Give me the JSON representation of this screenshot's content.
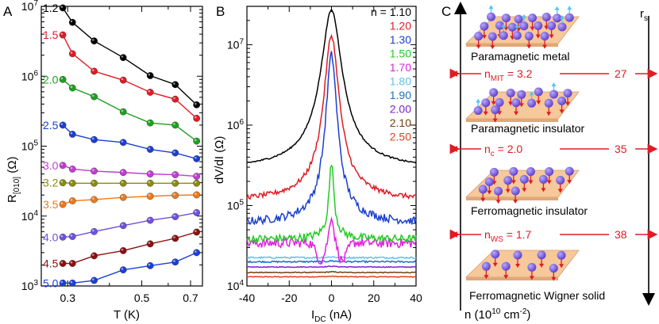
{
  "panels": {
    "a": {
      "letter": "A"
    },
    "b": {
      "letter": "B"
    },
    "c": {
      "letter": "C"
    }
  },
  "chart_data": [
    {
      "type": "line",
      "panel": "A",
      "title": "",
      "xlabel": "T (K)",
      "ylabel": "R[010] (Ω)",
      "ylabel_main": "R",
      "ylabel_sub": "[010]",
      "ylabel_unit": " (Ω)",
      "xscale": "log",
      "yscale": "log",
      "xlim": [
        0.25,
        0.76
      ],
      "ylim": [
        1000,
        10000000
      ],
      "xticks": [
        0.3,
        0.5,
        0.7
      ],
      "xtick_labels": [
        "0.3",
        "0.5",
        "0.7"
      ],
      "yticks": [
        {
          "base": "10",
          "exp": "3",
          "value": 1000
        },
        {
          "base": "10",
          "exp": "4",
          "value": 10000
        },
        {
          "base": "10",
          "exp": "5",
          "value": 100000
        },
        {
          "base": "10",
          "exp": "6",
          "value": 1000000
        },
        {
          "base": "10",
          "exp": "7",
          "value": 10000000
        }
      ],
      "x": [
        0.29,
        0.31,
        0.36,
        0.44,
        0.53,
        0.63,
        0.73
      ],
      "series": [
        {
          "name": "1.2",
          "color": "#000000",
          "values": [
            9500000,
            5900000,
            3200000,
            1850000,
            1020000,
            760000,
            390000
          ]
        },
        {
          "name": "1.5",
          "color": "#e01b24",
          "values": [
            3900000,
            2100000,
            1180000,
            880000,
            590000,
            470000,
            250000
          ]
        },
        {
          "name": "2.0",
          "color": "#1ea01e",
          "values": [
            900000,
            680000,
            510000,
            310000,
            215000,
            200000,
            118000
          ]
        },
        {
          "name": "2.5",
          "color": "#1a3fd0",
          "values": [
            200000,
            148000,
            124000,
            113000,
            90000,
            80000,
            66000
          ]
        },
        {
          "name": "3.0",
          "color": "#c23bd4",
          "values": [
            53000,
            47000,
            44000,
            42000,
            40000,
            39000,
            37000
          ]
        },
        {
          "name": "3.2",
          "color": "#8b8b10",
          "values": [
            30000,
            29500,
            29500,
            29500,
            29500,
            29500,
            29500
          ]
        },
        {
          "name": "3.5",
          "color": "#f07818",
          "values": [
            14700,
            16500,
            17200,
            18500,
            19200,
            19800,
            20100
          ]
        },
        {
          "name": "4.0",
          "color": "#7050e0",
          "values": [
            5000,
            5100,
            6000,
            7300,
            8700,
            9800,
            11200
          ]
        },
        {
          "name": "4.5",
          "color": "#8b1010",
          "values": [
            2100,
            2100,
            2700,
            3200,
            4000,
            4800,
            5900
          ]
        },
        {
          "name": "5.0",
          "color": "#1a40d8",
          "values": [
            1100,
            1100,
            1200,
            1700,
            1950,
            2200,
            3000
          ]
        }
      ]
    },
    {
      "type": "line",
      "panel": "B",
      "title": "",
      "xlabel": "IDC (nA)",
      "xlabel_main": "I",
      "xlabel_sub": "DC",
      "xlabel_unit": " (nA)",
      "ylabel": "dV/dI (Ω)",
      "yscale": "log",
      "xlim": [
        -40,
        40
      ],
      "ylim": [
        10000,
        30000000
      ],
      "xticks": [
        -40,
        -20,
        0,
        20,
        40
      ],
      "xtick_labels": [
        "-40",
        "-20",
        "0",
        "20",
        "40"
      ],
      "yticks": [
        {
          "base": "10",
          "exp": "4",
          "value": 10000
        },
        {
          "base": "10",
          "exp": "5",
          "value": 100000
        },
        {
          "base": "10",
          "exp": "6",
          "value": 1000000
        },
        {
          "base": "10",
          "exp": "7",
          "value": 10000000
        }
      ],
      "legend_prefix": "n = ",
      "legend_position": "top-right",
      "series": [
        {
          "name": "1.10",
          "color": "#000000",
          "peak": 27000000,
          "base": 270000,
          "width": 5.5,
          "noise": 0.01,
          "dip": 0
        },
        {
          "name": "1.20",
          "color": "#e01b24",
          "peak": 13000000,
          "base": 110000,
          "width": 4.0,
          "noise": 0.03,
          "dip": 0
        },
        {
          "name": "1.30",
          "color": "#1a3fd0",
          "peak": 7500000,
          "base": 58000,
          "width": 3.0,
          "noise": 0.05,
          "dip": 0
        },
        {
          "name": "1.50",
          "color": "#22cc22",
          "peak": 350000,
          "base": 38000,
          "width": 1.2,
          "noise": 0.05,
          "dip": 0
        },
        {
          "name": "1.70",
          "color": "#e020e0",
          "peak": 80000,
          "base": 34000,
          "width": 1.0,
          "noise": 0.06,
          "dip": 0.25
        },
        {
          "name": "1.80",
          "color": "#60c0f0",
          "peak": 23000,
          "base": 22500,
          "width": 2.0,
          "noise": 0.01,
          "dip": 0
        },
        {
          "name": "1.90",
          "color": "#1a70c8",
          "peak": 20500,
          "base": 20000,
          "width": 2.0,
          "noise": 0.01,
          "dip": 0
        },
        {
          "name": "2.00",
          "color": "#8020d0",
          "peak": 17600,
          "base": 17200,
          "width": 2.0,
          "noise": 0.005,
          "dip": 0
        },
        {
          "name": "2.10",
          "color": "#704010",
          "peak": 15000,
          "base": 14700,
          "width": 2.0,
          "noise": 0.005,
          "dip": 0
        },
        {
          "name": "2.50",
          "color": "#e04020",
          "peak": 13200,
          "base": 13000,
          "width": 2.0,
          "noise": 0.005,
          "dip": 0
        }
      ]
    }
  ],
  "schematic": {
    "axis_left_label": "n (10",
    "axis_left_exp": "10",
    "axis_left_unit": " cm",
    "axis_left_unit_exp": "-2",
    "axis_left_close": ")",
    "axis_right_label": "r",
    "axis_right_sub": "s",
    "phases": [
      {
        "name": "Paramagnetic metal"
      },
      {
        "name": "Paramagnetic insulator"
      },
      {
        "name": "Ferromagnetic insulator"
      },
      {
        "name": "Ferromagnetic Wigner solid"
      }
    ],
    "transitions": [
      {
        "symbol": "n",
        "sub": "MIT",
        "value": " = 3.2",
        "rs": "27"
      },
      {
        "symbol": "n",
        "sub": "c",
        "value": " = 2.0",
        "rs": "35"
      },
      {
        "symbol": "n",
        "sub": "WS",
        "value": " = 1.7",
        "rs": "38"
      }
    ],
    "colors": {
      "plate": "#f6c89a",
      "plate_edge": "#d89a68",
      "electron": "#7050d8",
      "spin_down": "#e01b24",
      "spin_up": "#50c8f0",
      "arrow": "#e01b24"
    }
  }
}
